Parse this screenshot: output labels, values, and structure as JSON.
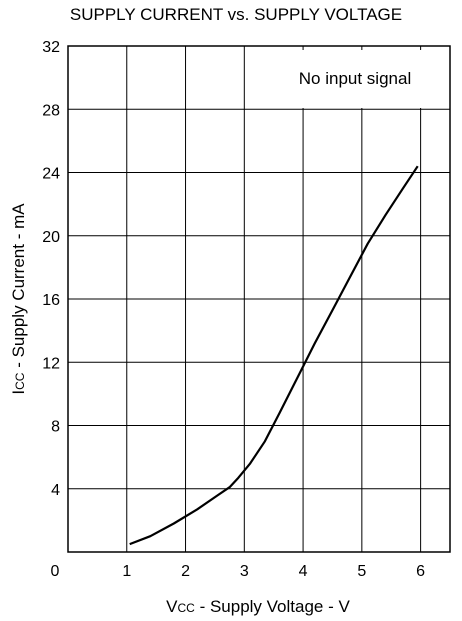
{
  "chart_data": {
    "type": "line",
    "title": "SUPPLY CURRENT vs. SUPPLY VOLTAGE",
    "xlabel": {
      "main_start": "V",
      "sub": "CC",
      "rest": " - Supply Voltage - V"
    },
    "ylabel": {
      "main_start": "I",
      "sub": "CC",
      "rest": " - Supply Current - mA"
    },
    "annotation": "No input signal",
    "xlim": [
      0,
      6.5
    ],
    "ylim": [
      0,
      32
    ],
    "x_ticks": [
      0,
      1,
      2,
      3,
      4,
      5,
      6
    ],
    "x_tick_labels": [
      "0",
      "1",
      "2",
      "3",
      "4",
      "5",
      "6"
    ],
    "y_ticks": [
      4,
      8,
      12,
      16,
      20,
      24,
      28,
      32
    ],
    "y_tick_labels": [
      "4",
      "8",
      "12",
      "16",
      "20",
      "24",
      "28",
      "32"
    ],
    "grid": true,
    "series": [
      {
        "values": [
          [
            1.05,
            0.5
          ],
          [
            1.4,
            1.0
          ],
          [
            1.8,
            1.8
          ],
          [
            2.2,
            2.7
          ],
          [
            2.55,
            3.6
          ],
          [
            2.75,
            4.1
          ],
          [
            2.9,
            4.7
          ],
          [
            3.1,
            5.6
          ],
          [
            3.35,
            7.0
          ],
          [
            3.6,
            8.8
          ],
          [
            3.9,
            11.0
          ],
          [
            4.2,
            13.2
          ],
          [
            4.5,
            15.3
          ],
          [
            4.8,
            17.4
          ],
          [
            5.1,
            19.5
          ],
          [
            5.4,
            21.3
          ],
          [
            5.7,
            23.0
          ],
          [
            5.95,
            24.4
          ]
        ]
      }
    ]
  }
}
